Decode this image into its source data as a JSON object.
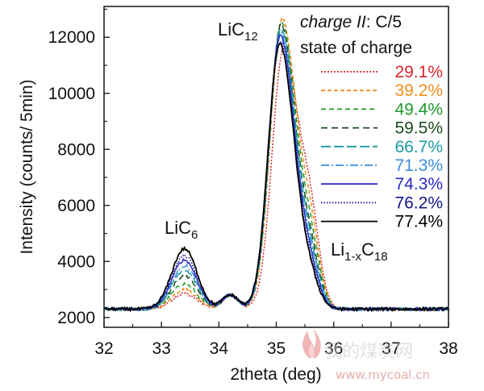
{
  "chart_data": {
    "type": "line",
    "xlabel": "2theta (deg)",
    "ylabel": "Intensity (counts/ 5min)",
    "xlim": [
      32,
      38
    ],
    "ylim": [
      1650,
      13100
    ],
    "x_ticks": [
      "32",
      "33",
      "34",
      "35",
      "36",
      "37",
      "38"
    ],
    "y_ticks": [
      "2000",
      "4000",
      "6000",
      "8000",
      "10000",
      "12000"
    ],
    "legend": {
      "title_italic": "charge II",
      "title_rest": ": C/5",
      "subtitle": "state of charge",
      "placement": "top-right"
    },
    "annotations": {
      "lic12": {
        "base": "LiC",
        "sub": "12"
      },
      "lic6": {
        "base": "LiC",
        "sub": "6"
      },
      "li1xc18": {
        "a": "Li",
        "sub1": "1-x",
        "b": "C",
        "sub2": "18"
      }
    },
    "series": [
      {
        "name": "29.1%",
        "color": "#d7262b",
        "dash": "2,2",
        "peak6": 2850,
        "peak12": 11600,
        "x12": 35.13,
        "shoulder": 7000
      },
      {
        "name": "39.2%",
        "color": "#f28c1c",
        "dash": "5,3",
        "peak6": 3000,
        "peak12": 12650,
        "x12": 35.1,
        "shoulder": 6300
      },
      {
        "name": "49.4%",
        "color": "#1f9a2e",
        "dash": "6,4",
        "peak6": 3200,
        "peak12": 12550,
        "x12": 35.09,
        "shoulder": 5700
      },
      {
        "name": "59.5%",
        "color": "#1d4a1d",
        "dash": "8,5",
        "peak6": 3500,
        "peak12": 12450,
        "x12": 35.08,
        "shoulder": 5100
      },
      {
        "name": "66.7%",
        "color": "#1b9aa0",
        "dash": "12,4",
        "peak6": 3700,
        "peak12": 12300,
        "x12": 35.08,
        "shoulder": 4700
      },
      {
        "name": "71.3%",
        "color": "#3a8fe0",
        "dash": "10,3,2,3",
        "peak6": 3850,
        "peak12": 12200,
        "x12": 35.07,
        "shoulder": 4400
      },
      {
        "name": "74.3%",
        "color": "#2a2ac8",
        "dash": "",
        "peak6": 4050,
        "peak12": 12050,
        "x12": 35.07,
        "shoulder": 4100
      },
      {
        "name": "76.2%",
        "color": "#14148c",
        "dash": "1.5,2",
        "peak6": 4200,
        "peak12": 11900,
        "x12": 35.06,
        "shoulder": 3850
      },
      {
        "name": "77.4%",
        "color": "#000000",
        "dash": "",
        "peak6": 4450,
        "peak12": 11750,
        "x12": 35.06,
        "shoulder": 3600
      }
    ]
  },
  "watermark": {
    "line1": "我的煤炭网",
    "line2": "www.mycoal.cn"
  }
}
